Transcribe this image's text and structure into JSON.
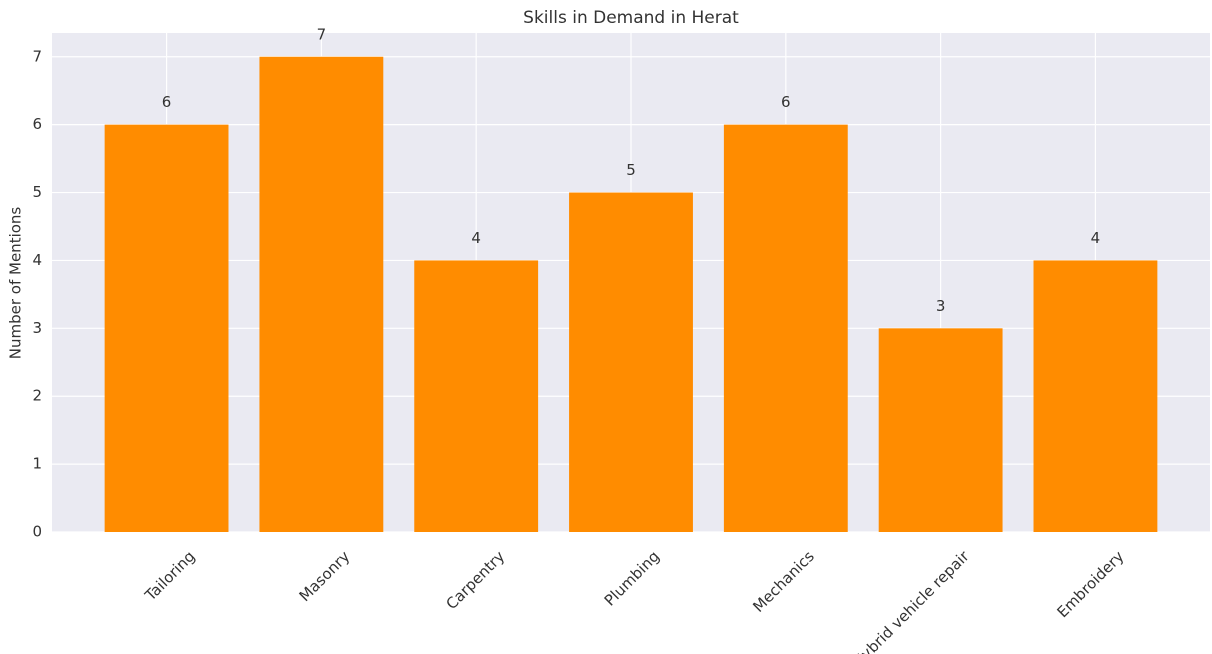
{
  "chart_data": {
    "type": "bar",
    "title": "Skills in Demand in Herat",
    "y_label": "Number of Mentions",
    "categories": [
      "Tailoring",
      "Masonry",
      "Carpentry",
      "Plumbing",
      "Mechanics",
      "Hybrid vehicle repair",
      "Embroidery"
    ],
    "values": [
      6,
      7,
      4,
      5,
      6,
      3,
      4
    ],
    "color": "#ff8c00",
    "ylim": [
      0,
      7.35
    ],
    "yticks": [
      0,
      1,
      2,
      3,
      4,
      5,
      6,
      7
    ],
    "grid": true
  }
}
